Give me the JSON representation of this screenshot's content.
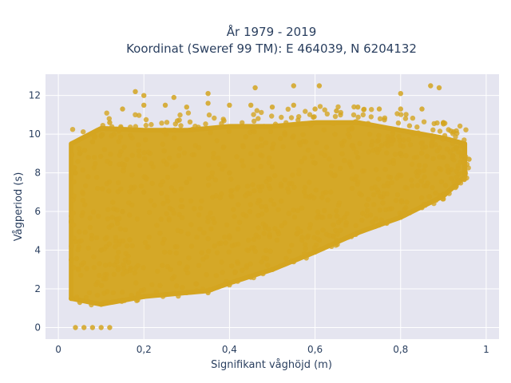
{
  "chart_data": {
    "type": "scatter",
    "title_line1": "År 1979 - 2019",
    "title_line2": "Koordinat (Sweref 99 TM): E 464039, N 6204132",
    "xlabel": "Signifikant våghöjd (m)",
    "ylabel": "Vågperiod (s)",
    "xlim": [
      -0.03,
      1.03
    ],
    "ylim": [
      -0.6,
      13.1
    ],
    "x_ticks": [
      0,
      0.2,
      0.4,
      0.6,
      0.8,
      1
    ],
    "x_tick_labels": [
      "0",
      "0,2",
      "0,4",
      "0,6",
      "0,8",
      "1"
    ],
    "y_ticks": [
      0,
      2,
      4,
      6,
      8,
      10,
      12
    ],
    "y_tick_labels": [
      "0",
      "2",
      "4",
      "6",
      "8",
      "10",
      "12"
    ],
    "grid": true,
    "marker_color": "#D4A520",
    "plot_background": "#E5E5F0",
    "series": [
      {
        "points": [
          [
            0.04,
            0.0
          ],
          [
            0.06,
            0.0
          ],
          [
            0.08,
            0.0
          ],
          [
            0.1,
            0.0
          ],
          [
            0.12,
            0.0
          ],
          [
            0.03,
            1.5
          ],
          [
            0.05,
            1.3
          ],
          [
            0.1,
            1.2
          ],
          [
            0.15,
            1.4
          ],
          [
            0.2,
            1.6
          ],
          [
            0.25,
            1.7
          ],
          [
            0.3,
            1.8
          ],
          [
            0.35,
            1.8
          ],
          [
            0.4,
            2.2
          ],
          [
            0.45,
            2.6
          ],
          [
            0.5,
            3.0
          ],
          [
            0.55,
            3.4
          ],
          [
            0.6,
            3.9
          ],
          [
            0.65,
            4.4
          ],
          [
            0.7,
            4.9
          ],
          [
            0.75,
            5.3
          ],
          [
            0.8,
            5.7
          ],
          [
            0.85,
            6.2
          ],
          [
            0.9,
            6.9
          ],
          [
            0.93,
            7.3
          ],
          [
            0.95,
            8.0
          ],
          [
            0.03,
            3.5
          ],
          [
            0.03,
            5.5
          ],
          [
            0.04,
            8.0
          ],
          [
            0.05,
            9.0
          ],
          [
            0.08,
            9.6
          ],
          [
            0.1,
            9.9
          ],
          [
            0.12,
            10.6
          ],
          [
            0.15,
            11.3
          ],
          [
            0.2,
            11.5
          ],
          [
            0.25,
            11.5
          ],
          [
            0.3,
            11.4
          ],
          [
            0.35,
            11.6
          ],
          [
            0.4,
            11.5
          ],
          [
            0.45,
            11.5
          ],
          [
            0.5,
            11.4
          ],
          [
            0.55,
            11.5
          ],
          [
            0.6,
            11.3
          ],
          [
            0.65,
            11.2
          ],
          [
            0.7,
            11.4
          ],
          [
            0.75,
            11.3
          ],
          [
            0.8,
            11.3
          ],
          [
            0.85,
            11.3
          ],
          [
            0.9,
            10.6
          ],
          [
            0.93,
            9.3
          ],
          [
            0.96,
            8.7
          ],
          [
            0.18,
            12.2
          ],
          [
            0.2,
            12.0
          ],
          [
            0.27,
            11.9
          ],
          [
            0.35,
            12.1
          ],
          [
            0.46,
            12.4
          ],
          [
            0.55,
            12.5
          ],
          [
            0.61,
            12.5
          ],
          [
            0.8,
            12.1
          ],
          [
            0.87,
            12.5
          ],
          [
            0.89,
            12.4
          ],
          [
            0.1,
            4.0
          ],
          [
            0.15,
            6.0
          ],
          [
            0.2,
            7.0
          ],
          [
            0.3,
            7.5
          ],
          [
            0.4,
            8.0
          ],
          [
            0.5,
            8.3
          ],
          [
            0.6,
            8.5
          ],
          [
            0.7,
            8.8
          ],
          [
            0.8,
            9.0
          ],
          [
            0.9,
            8.8
          ]
        ]
      }
    ]
  }
}
